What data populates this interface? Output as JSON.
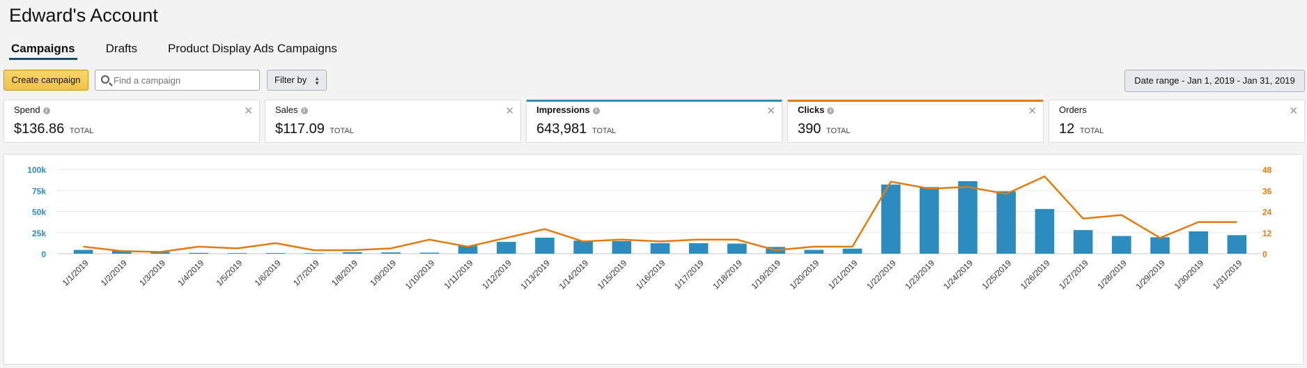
{
  "header": {
    "title": "Edward's Account"
  },
  "tabs": [
    {
      "label": "Campaigns",
      "active": true
    },
    {
      "label": "Drafts",
      "active": false
    },
    {
      "label": "Product Display Ads Campaigns",
      "active": false
    }
  ],
  "toolbar": {
    "create_label": "Create campaign",
    "search_placeholder": "Find a campaign",
    "filter_label": "Filter by",
    "date_range_label": "Date range - Jan 1, 2019 - Jan 31, 2019"
  },
  "metrics": [
    {
      "label": "Spend",
      "value": "$136.86",
      "suffix": "TOTAL",
      "selected": ""
    },
    {
      "label": "Sales",
      "value": "$117.09",
      "suffix": "TOTAL",
      "selected": ""
    },
    {
      "label": "Impressions",
      "value": "643,981",
      "suffix": "TOTAL",
      "selected": "blue"
    },
    {
      "label": "Clicks",
      "value": "390",
      "suffix": "TOTAL",
      "selected": "orange"
    },
    {
      "label": "Orders",
      "value": "12",
      "suffix": "TOTAL",
      "selected": ""
    }
  ],
  "colors": {
    "impressions": "#2e8bbd",
    "clicks": "#e07b12",
    "tab_underline": "#1d4e63"
  },
  "chart_data": {
    "type": "bar",
    "categories": [
      "1/1/2019",
      "1/2/2019",
      "1/3/2019",
      "1/4/2019",
      "1/5/2019",
      "1/6/2019",
      "1/7/2019",
      "1/8/2019",
      "1/9/2019",
      "1/10/2019",
      "1/11/2019",
      "1/12/2019",
      "1/13/2019",
      "1/14/2019",
      "1/15/2019",
      "1/16/2019",
      "1/17/2019",
      "1/18/2019",
      "1/19/2019",
      "1/20/2019",
      "1/21/2019",
      "1/22/2019",
      "1/23/2019",
      "1/24/2019",
      "1/25/2019",
      "1/26/2019",
      "1/27/2019",
      "1/28/2019",
      "1/29/2019",
      "1/30/2019",
      "1/31/2019"
    ],
    "series": [
      {
        "name": "Impressions",
        "type": "bar",
        "axis": "left",
        "color": "#2e8bbd",
        "values": [
          4500,
          3500,
          2000,
          1000,
          700,
          800,
          600,
          1800,
          1500,
          1200,
          9500,
          14000,
          19000,
          15500,
          15000,
          12500,
          12500,
          12000,
          8000,
          4500,
          6000,
          82000,
          79000,
          86000,
          74000,
          53000,
          28000,
          21000,
          19500,
          26500,
          22000
        ]
      },
      {
        "name": "Clicks",
        "type": "line",
        "axis": "right",
        "color": "#e07b12",
        "values": [
          4,
          1.5,
          1,
          4,
          3,
          6,
          2,
          2,
          3,
          8,
          4,
          9,
          14,
          7,
          8,
          7,
          8,
          8,
          2,
          4,
          4,
          41,
          37,
          38,
          34,
          44,
          20,
          22,
          9,
          18,
          18
        ]
      }
    ],
    "y_left": {
      "ticks": [
        "0",
        "25k",
        "50k",
        "75k",
        "100k"
      ],
      "min": 0,
      "max": 100000
    },
    "y_right": {
      "ticks": [
        "0",
        "12",
        "24",
        "36",
        "48"
      ],
      "min": 0,
      "max": 48
    },
    "grid": true
  }
}
